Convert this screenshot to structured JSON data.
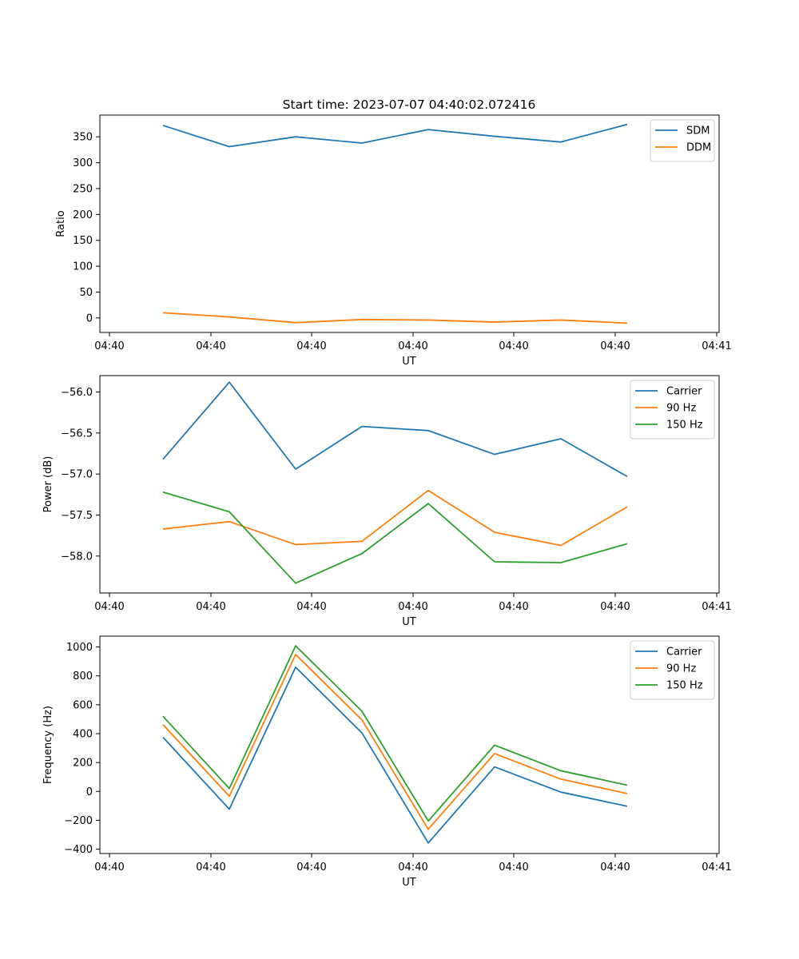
{
  "title": "Start time: 2023-07-07 04:40:02.072416",
  "colors": {
    "blue": "#1f77b4",
    "orange": "#ff7f0e",
    "green": "#2ca02c"
  },
  "chart_data": [
    {
      "type": "line",
      "ylabel": "Ratio",
      "xlabel": "UT",
      "x_tick_labels": [
        "04:40",
        "04:40",
        "04:40",
        "04:40",
        "04:40",
        "04:40",
        "04:41"
      ],
      "y_ticks": [
        0,
        50,
        100,
        150,
        200,
        250,
        300,
        350
      ],
      "y_tick_labels": [
        "0",
        "50",
        "100",
        "150",
        "200",
        "250",
        "300",
        "350"
      ],
      "ylim": [
        -28,
        392
      ],
      "legend_position": "upper-right",
      "series": [
        {
          "name": "SDM",
          "color": "#1f77b4",
          "values": [
            372,
            331,
            350,
            338,
            364,
            351,
            340,
            374
          ]
        },
        {
          "name": "DDM",
          "color": "#ff7f0e",
          "values": [
            10,
            2,
            -9,
            -3,
            -4,
            -8,
            -4,
            -10
          ]
        }
      ]
    },
    {
      "type": "line",
      "ylabel": "Power (dB)",
      "xlabel": "UT",
      "x_tick_labels": [
        "04:40",
        "04:40",
        "04:40",
        "04:40",
        "04:40",
        "04:40",
        "04:41"
      ],
      "y_ticks": [
        -56.0,
        -56.5,
        -57.0,
        -57.5,
        -58.0
      ],
      "y_tick_labels": [
        "−56.0",
        "−56.5",
        "−57.0",
        "−57.5",
        "−58.0"
      ],
      "ylim": [
        -58.45,
        -55.8
      ],
      "legend_position": "upper-right",
      "series": [
        {
          "name": "Carrier",
          "color": "#1f77b4",
          "values": [
            -56.82,
            -55.88,
            -56.94,
            -56.42,
            -56.47,
            -56.76,
            -56.57,
            -57.03
          ]
        },
        {
          "name": "90 Hz",
          "color": "#ff7f0e",
          "values": [
            -57.67,
            -57.58,
            -57.86,
            -57.82,
            -57.2,
            -57.71,
            -57.87,
            -57.4
          ]
        },
        {
          "name": "150 Hz",
          "color": "#2ca02c",
          "values": [
            -57.22,
            -57.46,
            -58.33,
            -57.97,
            -57.36,
            -58.07,
            -58.08,
            -57.85
          ]
        }
      ]
    },
    {
      "type": "line",
      "ylabel": "Frequency (Hz)",
      "xlabel": "UT",
      "x_tick_labels": [
        "04:40",
        "04:40",
        "04:40",
        "04:40",
        "04:40",
        "04:40",
        "04:41"
      ],
      "y_ticks": [
        -400,
        -200,
        0,
        200,
        400,
        600,
        800,
        1000
      ],
      "y_tick_labels": [
        "−400",
        "−200",
        "0",
        "200",
        "400",
        "600",
        "800",
        "1000"
      ],
      "ylim": [
        -430,
        1075
      ],
      "legend_position": "upper-right",
      "series": [
        {
          "name": "Carrier",
          "color": "#1f77b4",
          "values": [
            375,
            -123,
            860,
            405,
            -357,
            170,
            -5,
            -103
          ]
        },
        {
          "name": "90 Hz",
          "color": "#ff7f0e",
          "values": [
            462,
            -33,
            948,
            495,
            -262,
            262,
            85,
            -15
          ]
        },
        {
          "name": "150 Hz",
          "color": "#2ca02c",
          "values": [
            520,
            20,
            1008,
            555,
            -205,
            320,
            143,
            43
          ]
        }
      ]
    }
  ]
}
